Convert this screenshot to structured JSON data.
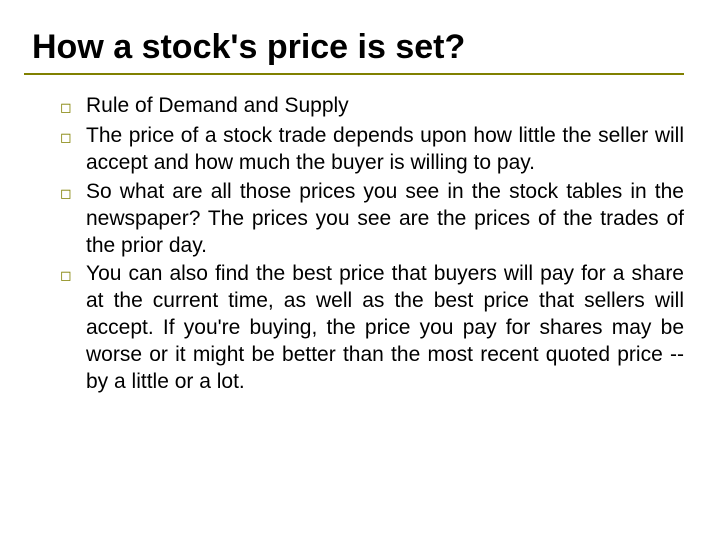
{
  "slide": {
    "title": "How a stock's price is set?",
    "title_color": "#000000",
    "title_fontsize": 34,
    "underline_color": "#808000",
    "bullet_marker": "◻",
    "bullet_marker_color": "#808000",
    "body_fontsize": 21,
    "body_color": "#000000",
    "background_color": "#ffffff",
    "bullets": [
      "Rule of Demand and Supply",
      "The price of a stock trade depends upon how little the seller will accept and how much the buyer is willing to pay.",
      "So what are all those prices you see in the stock tables in the newspaper? The prices you see are the prices of the trades of the prior day.",
      "You can also find the best price that buyers will pay for a share at the current time, as well as the best price that sellers will accept. If you're buying, the price you pay for shares may be worse or it might be better than the most recent quoted price -- by a little or a lot."
    ]
  }
}
